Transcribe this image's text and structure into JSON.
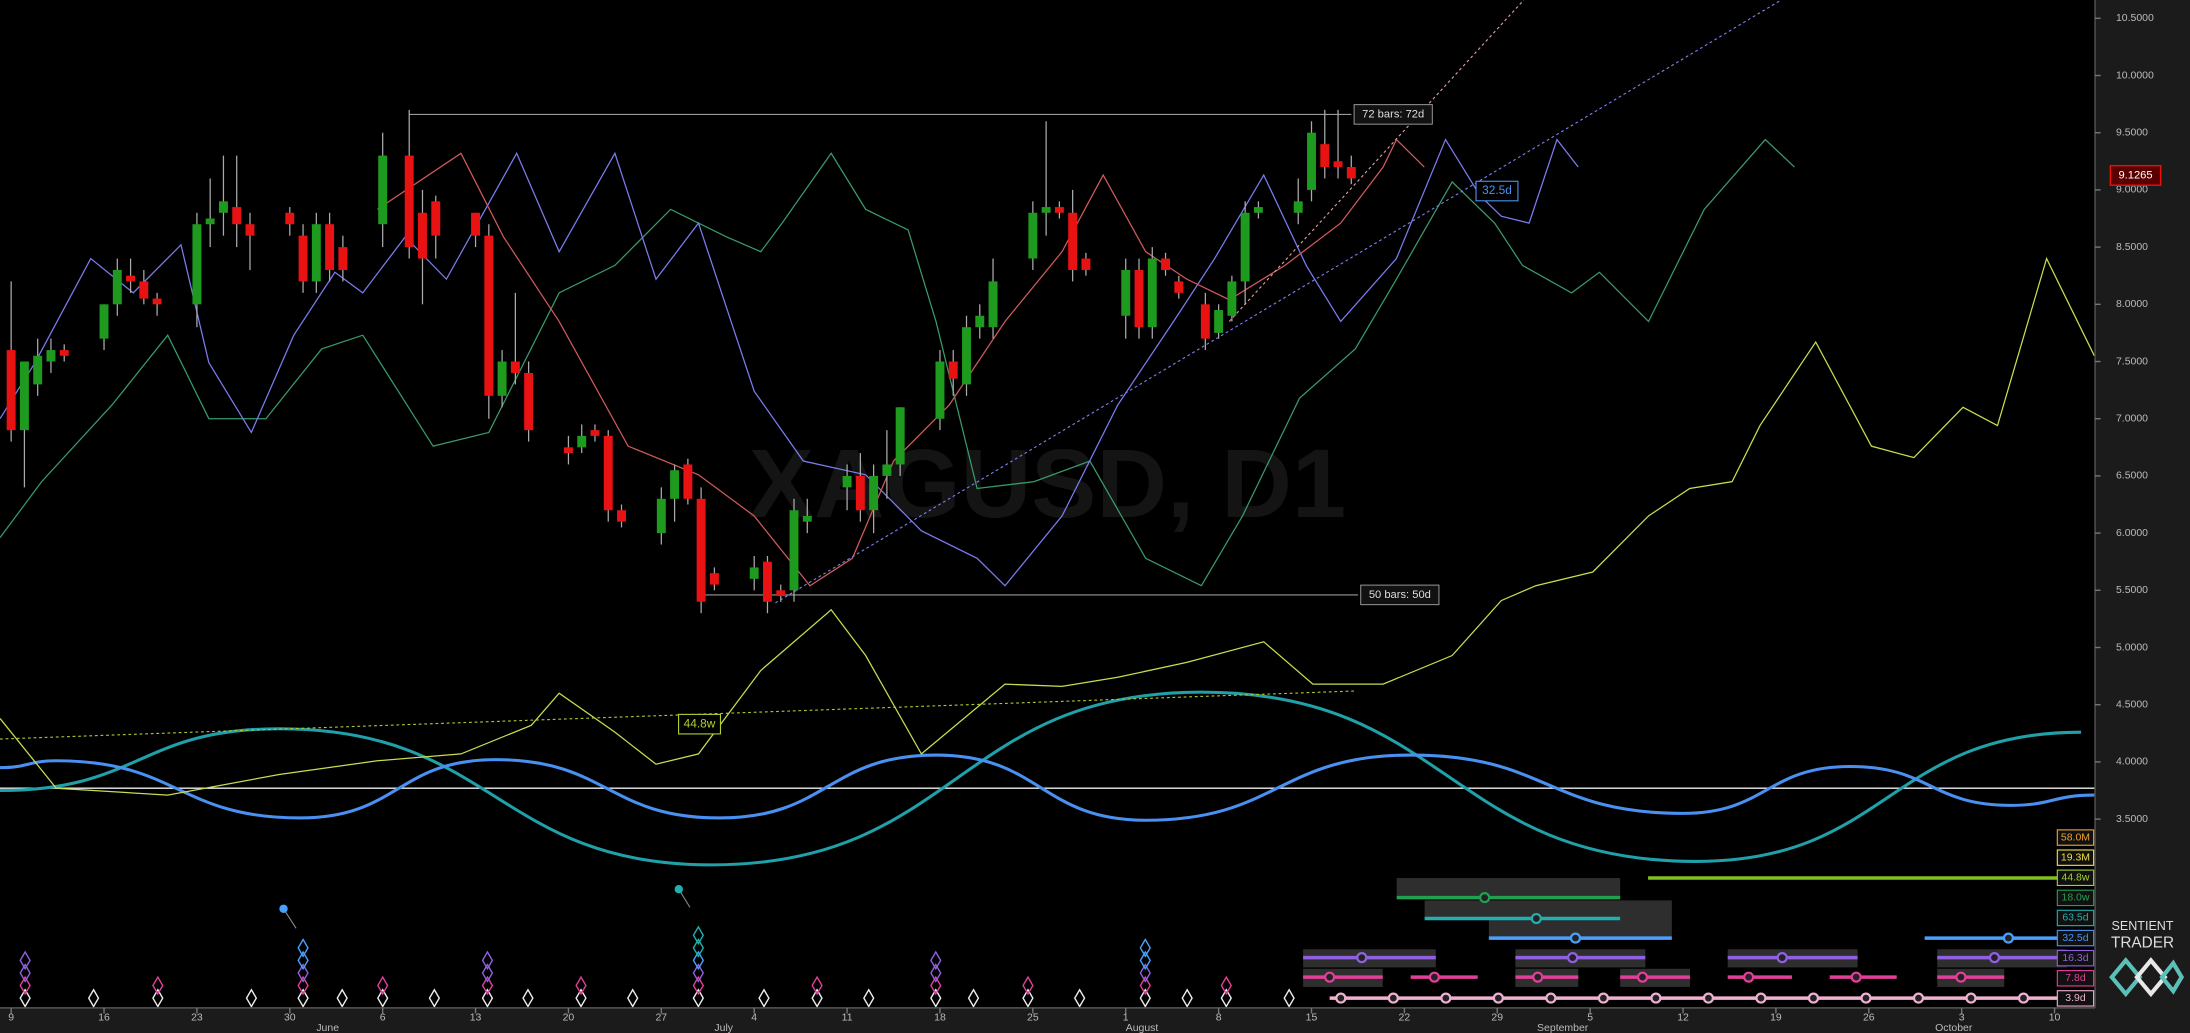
{
  "chart_data": {
    "type": "candlestick",
    "watermark": "XAGUSD, D1",
    "xlim": [
      -0.84,
      157.05
    ],
    "ylim": [
      1.85,
      10.66
    ],
    "xticks": [
      {
        "value": 0,
        "label": "9"
      },
      {
        "value": 7,
        "label": "16"
      },
      {
        "value": 14,
        "label": "23"
      },
      {
        "value": 21,
        "label": "30"
      },
      {
        "value": 28,
        "label": "6"
      },
      {
        "value": 35,
        "label": "13"
      },
      {
        "value": 42,
        "label": "20"
      },
      {
        "value": 49,
        "label": "27"
      },
      {
        "value": 56,
        "label": "4"
      },
      {
        "value": 63,
        "label": "11"
      },
      {
        "value": 70,
        "label": "18"
      },
      {
        "value": 77,
        "label": "25"
      },
      {
        "value": 84,
        "label": "1"
      },
      {
        "value": 91,
        "label": "8"
      },
      {
        "value": 98,
        "label": "15"
      },
      {
        "value": 105,
        "label": "22"
      },
      {
        "value": 112,
        "label": "29"
      },
      {
        "value": 119,
        "label": "5"
      },
      {
        "value": 126,
        "label": "12"
      },
      {
        "value": 133,
        "label": "19"
      },
      {
        "value": 140,
        "label": "26"
      },
      {
        "value": 147,
        "label": "3"
      },
      {
        "value": 154,
        "label": "10"
      }
    ],
    "month_labels": [
      {
        "value": 23,
        "label": "June"
      },
      {
        "value": 53,
        "label": "July"
      },
      {
        "value": 84,
        "label": "August"
      },
      {
        "value": 115,
        "label": "September"
      },
      {
        "value": 145,
        "label": "October"
      }
    ],
    "yticks": [
      {
        "value": 3.5,
        "label": "3.5000"
      },
      {
        "value": 4,
        "label": "4.0000"
      },
      {
        "value": 4.5,
        "label": "4.5000"
      },
      {
        "value": 5,
        "label": "5.0000"
      },
      {
        "value": 5.5,
        "label": "5.5000"
      },
      {
        "value": 6,
        "label": "6.0000"
      },
      {
        "value": 6.5,
        "label": "6.5000"
      },
      {
        "value": 7,
        "label": "7.0000"
      },
      {
        "value": 7.5,
        "label": "7.5000"
      },
      {
        "value": 8,
        "label": "8.0000"
      },
      {
        "value": 8.5,
        "label": "8.5000"
      },
      {
        "value": 9,
        "label": "9.0000"
      },
      {
        "value": 9.5,
        "label": "9.5000"
      },
      {
        "value": 10,
        "label": "10.0000"
      },
      {
        "value": 10.5,
        "label": "10.5000"
      }
    ],
    "up_color": "#1e9a1e",
    "down_color": "#e81212",
    "x": [
      0,
      1,
      2,
      3,
      4,
      7,
      8,
      9,
      10,
      11,
      14,
      15,
      16,
      17,
      18,
      21,
      22,
      23,
      24,
      25,
      28,
      30,
      31,
      32,
      35,
      36,
      37,
      38,
      39,
      42,
      43,
      44,
      45,
      46,
      49,
      50,
      51,
      52,
      53,
      56,
      57,
      58,
      59,
      60,
      63,
      64,
      65,
      66,
      67,
      70,
      71,
      72,
      73,
      74,
      77,
      78,
      79,
      80,
      81,
      84,
      85,
      86,
      87,
      88,
      90,
      91,
      92,
      93,
      94,
      97,
      98,
      99,
      100,
      101
    ],
    "open": [
      7.6,
      6.9,
      7.3,
      7.5,
      7.6,
      7.7,
      8.0,
      8.25,
      8.2,
      8.05,
      8.0,
      8.7,
      8.8,
      8.85,
      8.7,
      8.8,
      8.6,
      8.2,
      8.7,
      8.5,
      8.7,
      9.3,
      8.8,
      8.9,
      8.8,
      8.6,
      7.2,
      7.5,
      7.4,
      6.75,
      6.75,
      6.9,
      6.85,
      6.2,
      6.0,
      6.3,
      6.6,
      6.3,
      5.65,
      5.6,
      5.75,
      5.5,
      5.5,
      6.1,
      6.4,
      6.5,
      6.2,
      6.5,
      6.6,
      7.0,
      7.5,
      7.3,
      7.8,
      7.8,
      8.4,
      8.8,
      8.85,
      8.8,
      8.4,
      7.9,
      8.3,
      7.8,
      8.4,
      8.2,
      8.0,
      7.75,
      7.9,
      8.2,
      8.8,
      8.8,
      9.0,
      9.4,
      9.25,
      9.2
    ],
    "high": [
      8.2,
      7.5,
      7.7,
      7.7,
      7.65,
      8.0,
      8.4,
      8.4,
      8.3,
      8.1,
      8.8,
      9.1,
      9.3,
      9.3,
      8.8,
      8.85,
      8.7,
      8.8,
      8.8,
      8.6,
      9.5,
      9.7,
      9.0,
      8.95,
      8.8,
      8.7,
      7.6,
      8.1,
      7.5,
      6.85,
      6.95,
      6.95,
      6.9,
      6.25,
      6.4,
      6.6,
      6.65,
      6.4,
      5.7,
      5.8,
      5.8,
      5.55,
      6.3,
      6.3,
      6.6,
      6.7,
      6.6,
      6.9,
      7.1,
      7.6,
      7.6,
      7.9,
      8.0,
      8.4,
      8.9,
      9.6,
      8.9,
      9.0,
      8.45,
      8.4,
      8.4,
      8.5,
      8.45,
      8.25,
      8.1,
      8.0,
      8.25,
      8.9,
      8.9,
      9.1,
      9.6,
      9.7,
      9.7,
      9.3
    ],
    "low": [
      6.8,
      6.4,
      7.2,
      7.4,
      7.5,
      7.6,
      7.9,
      8.1,
      8.0,
      7.9,
      7.8,
      8.5,
      8.6,
      8.5,
      8.3,
      8.6,
      8.1,
      8.1,
      8.2,
      8.2,
      8.5,
      8.4,
      8.0,
      8.4,
      8.5,
      7.0,
      7.1,
      7.3,
      6.8,
      6.6,
      6.7,
      6.8,
      6.1,
      6.05,
      5.9,
      6.1,
      6.25,
      5.3,
      5.5,
      5.5,
      5.3,
      5.4,
      5.4,
      6.0,
      6.2,
      6.1,
      6.0,
      6.3,
      6.5,
      6.9,
      7.2,
      7.2,
      7.7,
      7.7,
      8.3,
      8.6,
      8.75,
      8.2,
      8.25,
      7.7,
      7.7,
      7.7,
      8.25,
      8.05,
      7.6,
      7.7,
      7.85,
      8.0,
      8.75,
      8.7,
      8.9,
      9.1,
      9.1,
      9.05
    ],
    "close": [
      6.9,
      7.5,
      7.55,
      7.6,
      7.55,
      8.0,
      8.3,
      8.2,
      8.05,
      8.0,
      8.7,
      8.75,
      8.9,
      8.7,
      8.6,
      8.7,
      8.2,
      8.7,
      8.3,
      8.3,
      9.3,
      8.5,
      8.4,
      8.6,
      8.6,
      7.2,
      7.5,
      7.4,
      6.9,
      6.7,
      6.85,
      6.85,
      6.2,
      6.1,
      6.3,
      6.55,
      6.3,
      5.4,
      5.55,
      5.7,
      5.4,
      5.45,
      6.2,
      6.15,
      6.5,
      6.2,
      6.5,
      6.6,
      7.1,
      7.5,
      7.35,
      7.8,
      7.9,
      8.2,
      8.8,
      8.85,
      8.8,
      8.3,
      8.3,
      8.3,
      7.8,
      8.4,
      8.3,
      8.1,
      7.7,
      7.95,
      8.2,
      8.8,
      8.85,
      8.9,
      9.5,
      9.2,
      9.2,
      9.1
    ],
    "last_price": {
      "value": 9.1265,
      "label": "9.1265"
    },
    "lines": [
      {
        "color": "#c8dc50",
        "x": [
          -0.84,
          3.4,
          11.8,
          20.2,
          27.6,
          33.9,
          39.2,
          41.3,
          45.5,
          48.6,
          51.8,
          56.5,
          61.8,
          64.4,
          68.6,
          74.9,
          79.2,
          83.4,
          88.6,
          94.4,
          98.1,
          103.4,
          108.6,
          112.3,
          114.9,
          119.2,
          123.4,
          126.5,
          129.7,
          131.8,
          136,
          140.2,
          143.4,
          147.1,
          149.7,
          153.4,
          157
        ],
        "values": [
          4.38,
          3.77,
          3.71,
          3.89,
          4.01,
          4.07,
          4.32,
          4.6,
          4.26,
          3.98,
          4.07,
          4.8,
          5.33,
          4.93,
          4.07,
          4.68,
          4.66,
          4.74,
          4.87,
          5.05,
          4.68,
          4.68,
          4.93,
          5.41,
          5.54,
          5.66,
          6.15,
          6.39,
          6.45,
          6.94,
          7.67,
          6.76,
          6.66,
          7.1,
          6.94,
          8.4,
          7.55
        ]
      },
      {
        "color": "#3a9a6a",
        "x": [
          -0.84,
          2.3,
          7.6,
          11.8,
          14.9,
          19.2,
          23.4,
          26.5,
          31.8,
          36,
          41.3,
          45.5,
          49.7,
          53.9,
          56.5,
          58.1,
          61.8,
          64.4,
          67.6,
          69.7,
          72.8,
          77.1,
          81.3,
          85.5,
          89.7,
          92.8,
          97.1,
          101.3,
          104.4,
          108.6,
          111.8,
          113.9,
          117.6,
          119.7,
          123.4,
          127.6,
          132.2,
          134.4
        ],
        "values": [
          5.96,
          6.45,
          7.12,
          7.73,
          7.0,
          7.0,
          7.61,
          7.73,
          6.76,
          6.88,
          8.1,
          8.34,
          8.83,
          8.59,
          8.46,
          8.71,
          9.32,
          8.83,
          8.65,
          7.85,
          6.39,
          6.45,
          6.63,
          5.78,
          5.54,
          6.15,
          7.18,
          7.61,
          8.22,
          9.07,
          8.71,
          8.34,
          8.1,
          8.28,
          7.85,
          8.83,
          9.44,
          9.2
        ]
      },
      {
        "color": "#7a7cf0",
        "x": [
          -0.84,
          1.8,
          6,
          9.2,
          12.8,
          14.9,
          18.1,
          21.3,
          24.4,
          26.5,
          29.7,
          32.8,
          38.1,
          41.3,
          45.5,
          48.6,
          51.8,
          56,
          59.7,
          64.4,
          68.6,
          72.8,
          74.9,
          79.2,
          83.4,
          87.6,
          90.7,
          94.4,
          97.6,
          100.2,
          104.4,
          108.1,
          110.7,
          112.3,
          114.4,
          116.5,
          118.1
        ],
        "values": [
          7.0,
          7.49,
          8.4,
          8.1,
          8.52,
          7.49,
          6.88,
          7.73,
          8.28,
          8.1,
          8.59,
          8.22,
          9.32,
          8.46,
          9.32,
          8.22,
          8.71,
          7.24,
          6.63,
          6.51,
          6.02,
          5.78,
          5.54,
          6.15,
          7.12,
          7.85,
          8.4,
          9.13,
          8.34,
          7.85,
          8.4,
          9.44,
          8.95,
          8.77,
          8.71,
          9.44,
          9.2
        ]
      },
      {
        "color": "#d05a5a",
        "x": [
          27.6,
          33.9,
          37.1,
          41.3,
          46.5,
          51.8,
          56,
          60.2,
          63.4,
          66.5,
          70.7,
          74.9,
          79.2,
          82.3,
          85.5,
          88.6,
          91.8,
          96,
          100.2,
          103.4,
          104.4,
          106.5
        ],
        "values": [
          8.83,
          9.32,
          8.59,
          7.85,
          6.76,
          6.51,
          6.15,
          5.54,
          5.78,
          6.63,
          7.12,
          7.85,
          8.46,
          9.13,
          8.46,
          8.22,
          8.04,
          8.34,
          8.71,
          9.2,
          9.44,
          9.2
        ]
      }
    ],
    "sine_waves": [
      {
        "color": "#20a0a8",
        "x": [
          -0.84,
          20.2,
          52.8,
          89.7,
          127,
          156
        ],
        "values": [
          3.75,
          4.29,
          3.1,
          4.61,
          3.13,
          4.26
        ]
      },
      {
        "color": "#4a90f0",
        "x": [
          -0.84,
          3.4,
          21.8,
          36.5,
          53.4,
          69.7,
          85.5,
          105.5,
          126,
          138.6,
          150.7,
          157
        ],
        "values": [
          3.95,
          4.01,
          3.51,
          4.02,
          3.51,
          4.06,
          3.49,
          4.06,
          3.55,
          3.96,
          3.62,
          3.71
        ]
      }
    ],
    "hline": 3.77,
    "trend_lines": [
      {
        "color": "#7a80f0",
        "x": [
          57.6,
          133.4
        ],
        "values": [
          5.39,
          10.66
        ]
      },
      {
        "color": "#e0a0a0",
        "x": [
          91.8,
          114.0
        ],
        "values": [
          7.85,
          10.66
        ]
      },
      {
        "color": "#b0c830",
        "x": [
          -0.84,
          101.3
        ],
        "values": [
          4.2,
          4.62
        ]
      }
    ],
    "bar_counts": [
      {
        "text": "72 bars: 72d",
        "x": [
          30,
          101
        ],
        "value": 9.66
      },
      {
        "text": "50 bars: 50d",
        "x": [
          52.3,
          101.5
        ],
        "value": 5.46
      }
    ],
    "line_labels": [
      {
        "text": "32.5d",
        "x": 110.4,
        "value": 8.99,
        "color": "#4a90f0"
      },
      {
        "text": "44.8w",
        "x": 50.3,
        "value": 4.33,
        "color": "#b0d030"
      }
    ],
    "cycle_legend": [
      {
        "label": "58.0M",
        "color": "#f0a030"
      },
      {
        "label": "19.3M",
        "color": "#f0e040"
      },
      {
        "label": "44.8w",
        "color": "#a0d030"
      },
      {
        "label": "18.0w",
        "color": "#20a050"
      },
      {
        "label": "63.5d",
        "color": "#20b0b0"
      },
      {
        "label": "32.5d",
        "color": "#4a90f0"
      },
      {
        "label": "16.3d",
        "color": "#9060e0"
      },
      {
        "label": "7.8d",
        "color": "#e0409a"
      },
      {
        "label": "3.9d",
        "color": "#f0b0d0"
      }
    ],
    "brand": [
      "SENTIENT",
      "TRADER"
    ]
  }
}
